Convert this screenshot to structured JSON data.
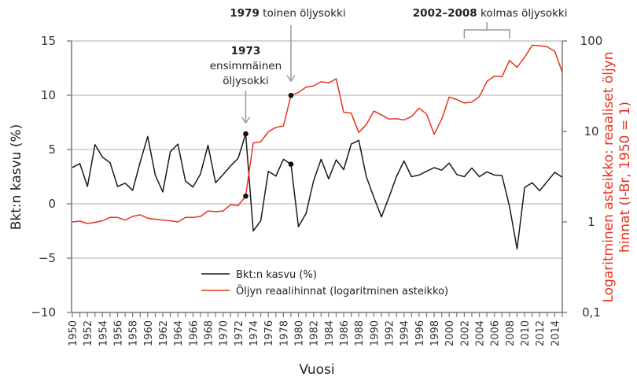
{
  "chart_data": {
    "type": "line",
    "xlabel": "Vuosi",
    "ylabel_left": "Bkt:n kasvu (%)",
    "ylabel_right_line1": "Logaritminen asteikko: reaaliset öljyn",
    "ylabel_right_line2": "hinnat (I-Br, 1950 = 1)",
    "ylim_left": [
      -10,
      15
    ],
    "yticks_left": [
      "15",
      "10",
      "5",
      "0",
      "−5",
      "−10"
    ],
    "ylim_right": [
      0.1,
      100
    ],
    "yscale_right": "log",
    "yticks_right": [
      "100",
      "10",
      "1",
      "0,1"
    ],
    "grid": true,
    "legend_placement": "bottom-center",
    "x": [
      1950,
      1951,
      1952,
      1953,
      1954,
      1955,
      1956,
      1957,
      1958,
      1959,
      1960,
      1961,
      1962,
      1963,
      1964,
      1965,
      1966,
      1967,
      1968,
      1969,
      1970,
      1971,
      1972,
      1973,
      1974,
      1975,
      1976,
      1977,
      1978,
      1979,
      1980,
      1981,
      1982,
      1983,
      1984,
      1985,
      1986,
      1987,
      1988,
      1989,
      1990,
      1991,
      1992,
      1993,
      1994,
      1995,
      1996,
      1997,
      1998,
      1999,
      2000,
      2001,
      2002,
      2003,
      2004,
      2005,
      2006,
      2007,
      2008,
      2009,
      2010,
      2011,
      2012,
      2013,
      2014,
      2015
    ],
    "xtick_labels": [
      "1950",
      "1952",
      "1954",
      "1956",
      "1958",
      "1960",
      "1962",
      "1964",
      "1966",
      "1968",
      "1970",
      "1972",
      "1974",
      "1976",
      "1978",
      "1980",
      "1982",
      "1984",
      "1986",
      "1988",
      "1990",
      "1992",
      "1994",
      "1996",
      "1998",
      "2000",
      "2002",
      "2004",
      "2006",
      "2008",
      "2010",
      "2012",
      "2014"
    ],
    "series": [
      {
        "name": "Bkt:n kasvu (%)",
        "axis": "left",
        "color": "#1a1a1a",
        "values": [
          3.35,
          3.7,
          1.6,
          5.45,
          4.3,
          3.8,
          1.6,
          1.9,
          1.25,
          3.85,
          6.2,
          2.65,
          1.1,
          4.8,
          5.5,
          2.1,
          1.55,
          2.75,
          5.4,
          1.95,
          2.7,
          3.5,
          4.2,
          6.45,
          -2.5,
          -1.55,
          3.0,
          2.55,
          4.1,
          3.65,
          -2.1,
          -0.9,
          2.1,
          4.1,
          2.3,
          4.05,
          3.15,
          5.5,
          5.85,
          2.5,
          0.6,
          -1.2,
          0.6,
          2.5,
          3.95,
          2.5,
          2.65,
          3.0,
          3.33,
          3.1,
          3.75,
          2.7,
          2.5,
          3.3,
          2.5,
          2.95,
          2.65,
          2.6,
          -0.25,
          -4.15,
          1.5,
          1.95,
          1.2,
          2.05,
          2.9,
          2.45
        ]
      },
      {
        "name": "Öljyn reaalihinnat (logaritminen asteikko)",
        "axis": "right",
        "color": "#e8321e",
        "values": [
          1.0,
          1.02,
          0.96,
          0.99,
          1.03,
          1.12,
          1.12,
          1.05,
          1.15,
          1.2,
          1.1,
          1.07,
          1.05,
          1.03,
          1.0,
          1.12,
          1.12,
          1.15,
          1.32,
          1.3,
          1.32,
          1.55,
          1.52,
          1.93,
          7.45,
          7.7,
          9.9,
          11.1,
          11.5,
          25,
          27,
          30.9,
          31.9,
          35.4,
          34.4,
          38.2,
          16.3,
          15.9,
          9.75,
          11.9,
          16.8,
          15.2,
          13.7,
          13.8,
          13.4,
          14.6,
          18.1,
          15.5,
          9.3,
          13.6,
          24,
          22.5,
          20.6,
          21.1,
          24.3,
          35.7,
          40.9,
          40.2,
          60.9,
          51,
          66,
          89.5,
          88.5,
          86,
          77,
          45
        ]
      }
    ],
    "annotations": [
      {
        "year_bold": "1973",
        "line1": "ensimmäinen",
        "line2": "öljysokki",
        "x": 1973
      },
      {
        "year_bold": "1979",
        "text": " toinen öljysokki",
        "x": 1979
      },
      {
        "year_bold": "2002–2008",
        "text": " kolmas öljysokki",
        "x_range": [
          2002,
          2008
        ]
      }
    ],
    "highlighted_points": [
      1973,
      1979
    ]
  }
}
